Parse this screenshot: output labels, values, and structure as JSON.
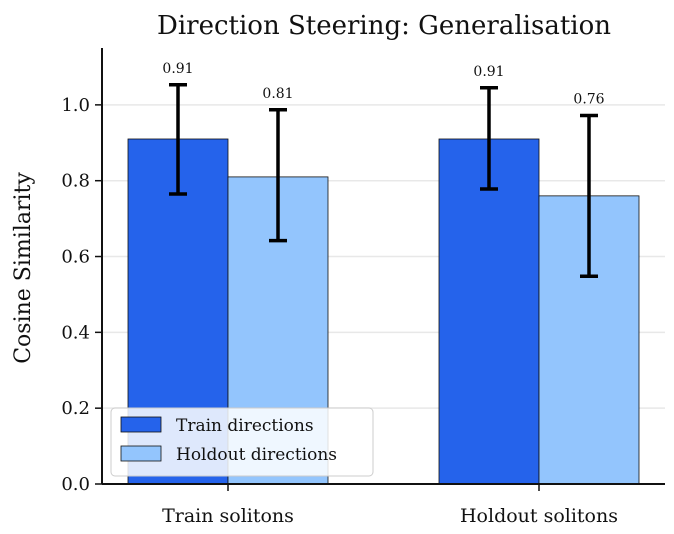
{
  "chart_data": {
    "type": "bar",
    "title": "Direction Steering: Generalisation",
    "xlabel": "",
    "ylabel": "Cosine Similarity",
    "categories": [
      "Train solitons",
      "Holdout solitons"
    ],
    "ylim": [
      0,
      1.15
    ],
    "yticks": [
      0.0,
      0.2,
      0.4,
      0.6,
      0.8,
      1.0
    ],
    "ytick_labels": [
      "0.0",
      "0.2",
      "0.4",
      "0.6",
      "0.8",
      "1.0"
    ],
    "grid": "horizontal",
    "legend_position": "lower-left",
    "series": [
      {
        "name": "Train directions",
        "color": "#2563eb",
        "values": [
          0.91,
          0.91
        ],
        "error_low": [
          0.765,
          0.778
        ],
        "error_high": [
          1.053,
          1.045
        ],
        "labels": [
          "0.91",
          "0.91"
        ]
      },
      {
        "name": "Holdout directions",
        "color": "#93c5fd",
        "values": [
          0.81,
          0.76
        ],
        "error_low": [
          0.642,
          0.548
        ],
        "error_high": [
          0.987,
          0.972
        ],
        "labels": [
          "0.81",
          "0.76"
        ]
      }
    ]
  }
}
